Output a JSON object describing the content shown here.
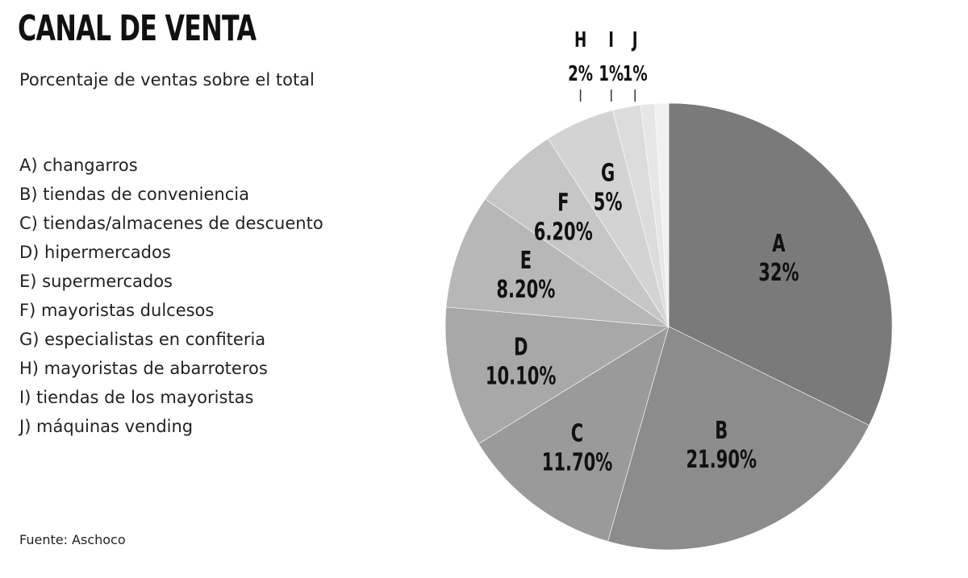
{
  "title": "CANAL DE VENTA",
  "subtitle": "Porcentaje de ventas sobre el total",
  "source": "Fuente: Aschoco",
  "legend": [
    "A) changarros",
    "B) tiendas de conveniencia",
    "C) tiendas/almacenes de descuento",
    "D) hipermercados",
    "E) supermercados",
    "F) mayoristas dulcesos",
    "G) especialistas en confiteria",
    "H) mayoristas de abarroteros",
    "I) tiendas de los mayoristas",
    "J) máquinas vending"
  ],
  "chart_data": {
    "type": "pie",
    "title": "CANAL DE VENTA",
    "subtitle": "Porcentaje de ventas sobre el total",
    "start": "12 o'clock, clockwise",
    "categories": [
      "A",
      "B",
      "C",
      "D",
      "E",
      "F",
      "G",
      "H",
      "I",
      "J"
    ],
    "values": [
      32,
      21.9,
      11.7,
      10.1,
      8.2,
      6.2,
      5,
      2,
      1,
      1
    ],
    "labels": [
      "32%",
      "21.90%",
      "11.70%",
      "10.10%",
      "8.20%",
      "6.20%",
      "5%",
      "2%",
      "1%",
      "1%"
    ],
    "colors": [
      "#7a7a7a",
      "#8c8c8c",
      "#9a9a9a",
      "#a8a8a8",
      "#b7b7b7",
      "#c6c6c6",
      "#d3d3d3",
      "#dcdcdc",
      "#e6e6e6",
      "#f0f0f0"
    ],
    "outside_labels": [
      "H",
      "I",
      "J"
    ]
  }
}
